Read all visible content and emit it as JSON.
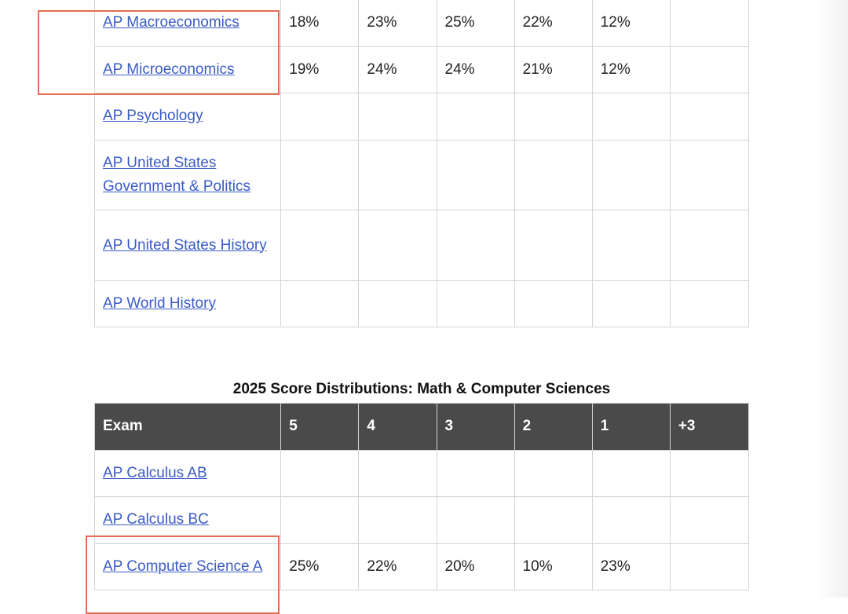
{
  "social_table": {
    "rows": [
      {
        "exam": "AP Macroeconomics",
        "scores": [
          "18%",
          "23%",
          "25%",
          "22%",
          "12%",
          ""
        ]
      },
      {
        "exam": "AP Microeconomics",
        "scores": [
          "19%",
          "24%",
          "24%",
          "21%",
          "12%",
          ""
        ]
      },
      {
        "exam": "AP Psychology",
        "scores": [
          "",
          "",
          "",
          "",
          "",
          ""
        ]
      },
      {
        "exam": "AP United States Government & Politics",
        "scores": [
          "",
          "",
          "",
          "",
          "",
          ""
        ]
      },
      {
        "exam": "AP United States History",
        "scores": [
          "",
          "",
          "",
          "",
          "",
          ""
        ]
      },
      {
        "exam": "AP World History",
        "scores": [
          "",
          "",
          "",
          "",
          "",
          ""
        ]
      }
    ]
  },
  "math_table": {
    "caption": "2025 Score Distributions: Math & Computer Sciences",
    "headers": [
      "Exam",
      "5",
      "4",
      "3",
      "2",
      "1",
      "+3"
    ],
    "rows": [
      {
        "exam": "AP Calculus AB",
        "scores": [
          "",
          "",
          "",
          "",
          "",
          ""
        ]
      },
      {
        "exam": "AP Calculus BC",
        "scores": [
          "",
          "",
          "",
          "",
          "",
          ""
        ]
      },
      {
        "exam": "AP Computer Science A",
        "scores": [
          "25%",
          "22%",
          "20%",
          "10%",
          "23%",
          ""
        ]
      }
    ]
  },
  "colors": {
    "link": "#3a5bc7",
    "header_bg": "#4a4a4a",
    "highlight_border": "#e36d55"
  }
}
